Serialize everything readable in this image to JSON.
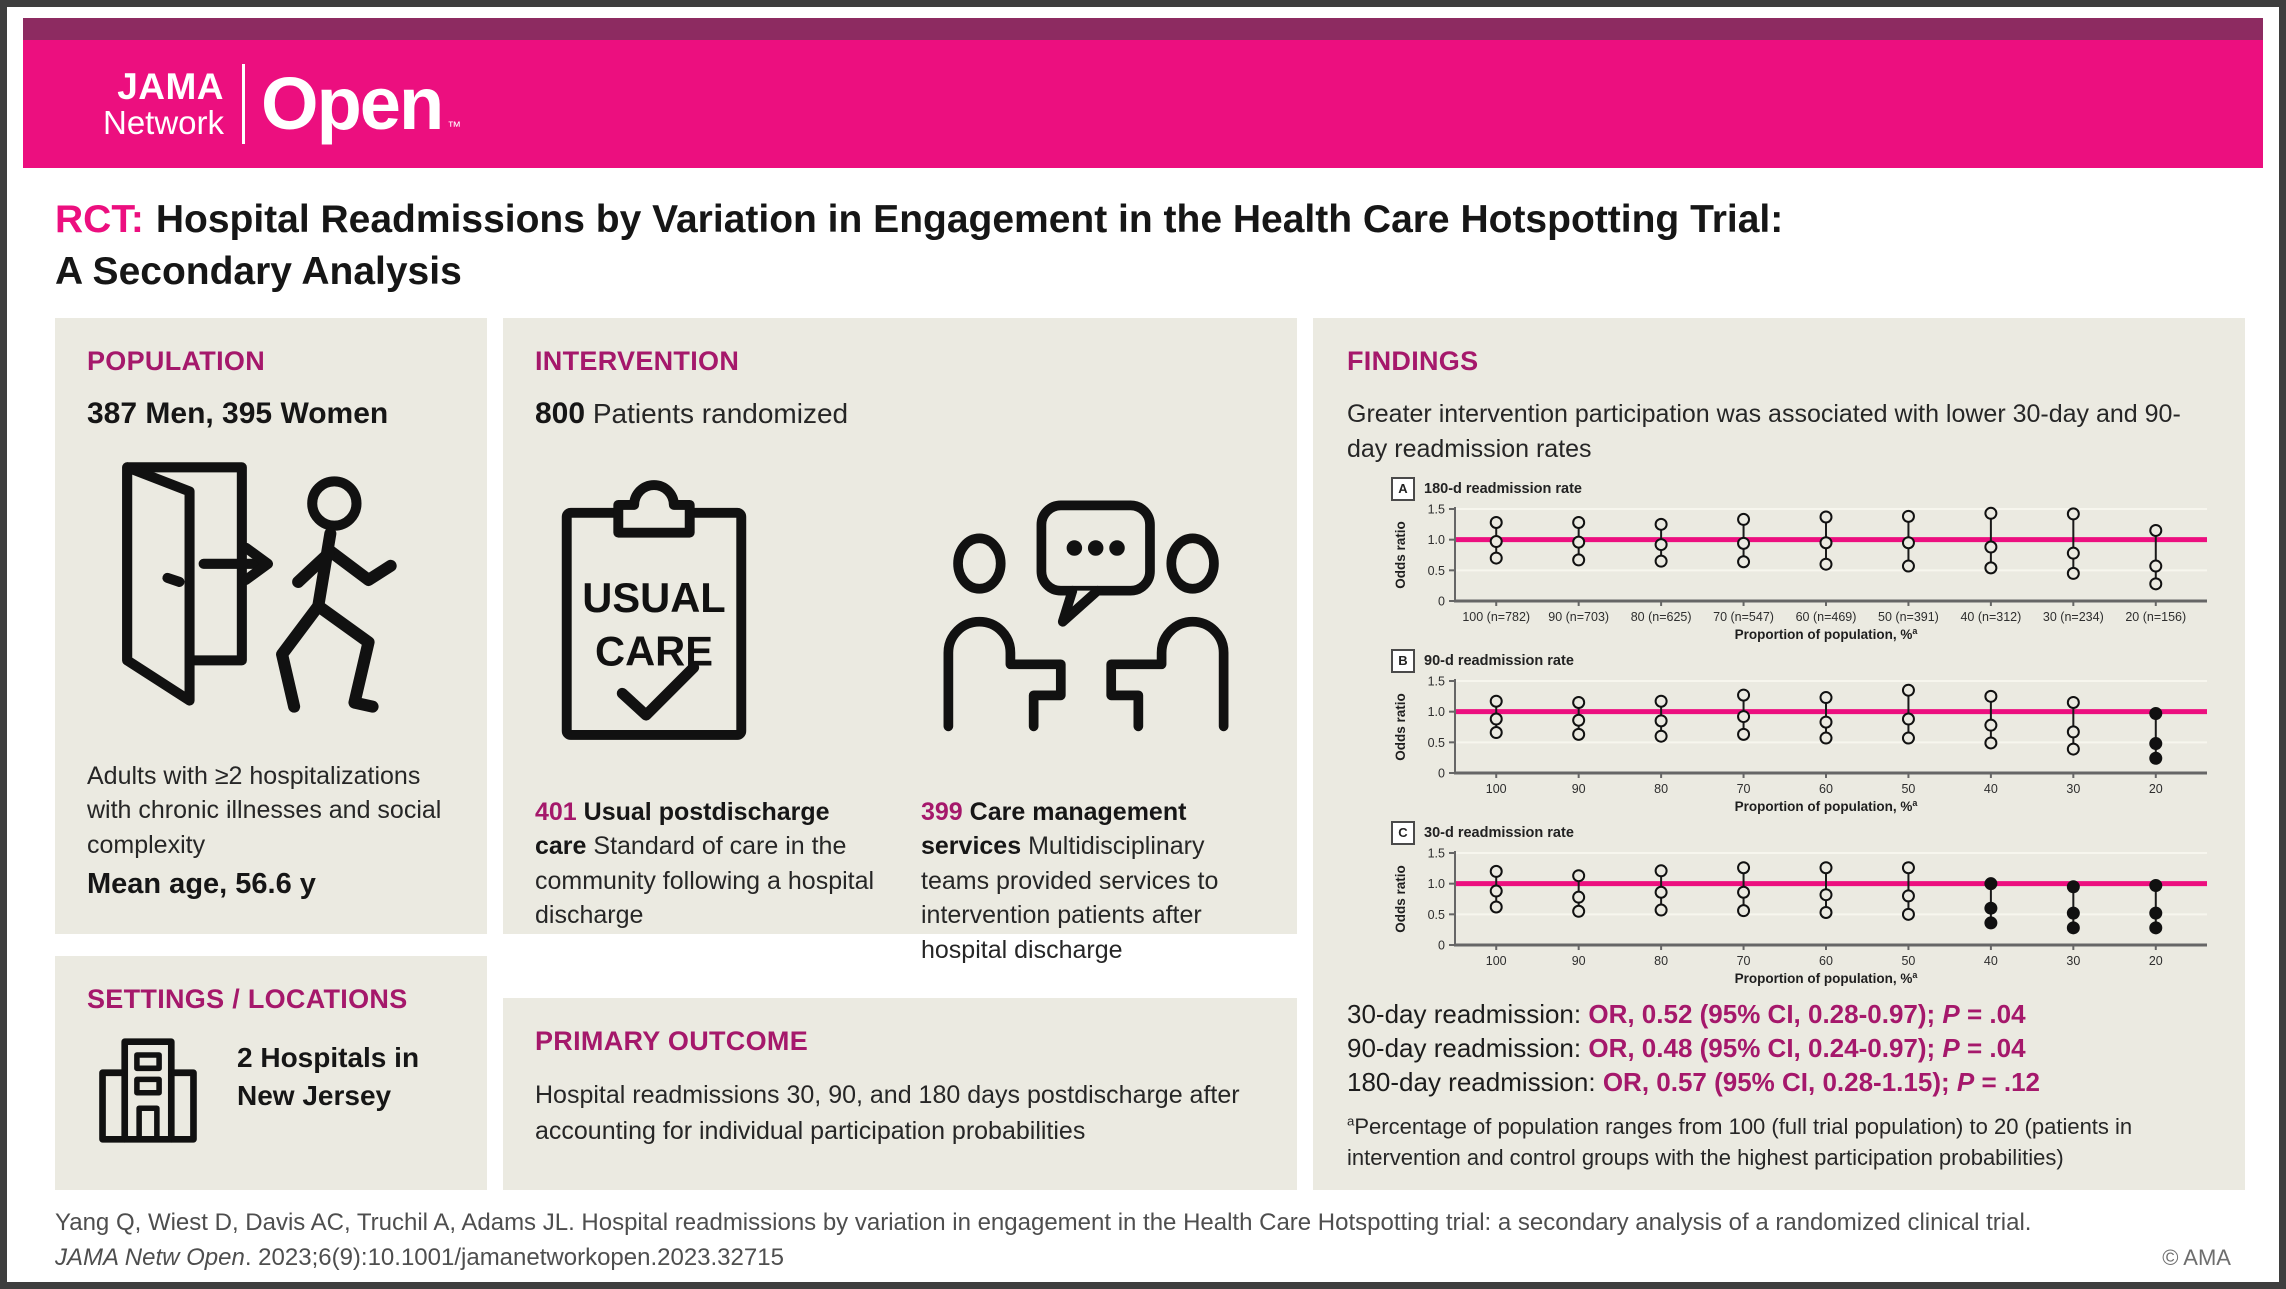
{
  "colors": {
    "brand_pink": "#EC0F7F",
    "brand_plum": "#8D2B61",
    "heading_magenta": "#A5186B",
    "panel_bg": "#EBEAE1"
  },
  "header": {
    "brand_line1": "JAMA",
    "brand_line2": "Network",
    "brand_open": "Open",
    "trademark": "™"
  },
  "title": {
    "prefix": "RCT:",
    "line1": "Hospital Readmissions by Variation in Engagement in the Health Care Hotspotting Trial:",
    "line2": "A Secondary Analysis"
  },
  "population": {
    "heading": "POPULATION",
    "stat": "387 Men, 395 Women",
    "description": "Adults with ≥2 hospitalizations with chronic illnesses and social complexity",
    "mean_age": "Mean age, 56.6 y"
  },
  "settings": {
    "heading": "SETTINGS / LOCATIONS",
    "line1": "2 Hospitals in",
    "line2": "New Jersey"
  },
  "intervention": {
    "heading": "INTERVENTION",
    "randomized_number": "800",
    "randomized_text": "Patients randomized",
    "clipboard_line1": "USUAL",
    "clipboard_line2": "CARE",
    "arm1": {
      "number": "401",
      "bold": "Usual postdischarge care",
      "text": "Standard of care in the community following a hospital discharge"
    },
    "arm2": {
      "number": "399",
      "bold": "Care management services",
      "text": "Multidisciplinary teams provided services to intervention patients after hospital discharge"
    }
  },
  "primary_outcome": {
    "heading": "PRIMARY OUTCOME",
    "text": "Hospital readmissions 30, 90, and 180 days postdischarge after accounting for individual participation probabilities"
  },
  "findings": {
    "heading": "FINDINGS",
    "summary": "Greater intervention participation was associated with lower 30-day and 90-day readmission rates",
    "results": [
      {
        "label": "30-day readmission:",
        "or": "OR, 0.52 (95% CI, 0.28-0.97);",
        "p_label": "P",
        "p_value": " = .04"
      },
      {
        "label": "90-day readmission:",
        "or": "OR, 0.48 (95% CI, 0.24-0.97);",
        "p_label": "P",
        "p_value": " = .04"
      },
      {
        "label": "180-day readmission:",
        "or": "OR, 0.57 (95% CI, 0.28-1.15);",
        "p_label": "P",
        "p_value": " = .12"
      }
    ],
    "footnote_marker": "a",
    "footnote": "Percentage of population ranges from 100 (full trial population) to 20 (patients in intervention and control groups with the highest participation probabilities)"
  },
  "chart_data": [
    {
      "type": "scatter",
      "panel": "A",
      "title": "180-d readmission rate",
      "xlabel": "Proportion of population, %",
      "xlabel_sup": "a",
      "ylabel": "Odds ratio",
      "ylim": [
        0,
        1.5
      ],
      "yticks": [
        0,
        0.5,
        1.0,
        1.5
      ],
      "reference_line": 1.0,
      "grid": true,
      "categories": [
        "100 (n=782)",
        "90 (n=703)",
        "80 (n=625)",
        "70 (n=547)",
        "60 (n=469)",
        "50 (n=391)",
        "40 (n=312)",
        "30 (n=234)",
        "20 (n=156)"
      ],
      "series": [
        {
          "name": "odds ratio",
          "values": [
            0.97,
            0.96,
            0.92,
            0.94,
            0.95,
            0.95,
            0.88,
            0.78,
            0.57
          ]
        },
        {
          "name": "upper 95% CI",
          "values": [
            1.28,
            1.28,
            1.25,
            1.33,
            1.37,
            1.38,
            1.43,
            1.42,
            1.15
          ]
        },
        {
          "name": "lower 95% CI",
          "values": [
            0.7,
            0.67,
            0.65,
            0.64,
            0.6,
            0.57,
            0.54,
            0.45,
            0.28
          ]
        }
      ],
      "filled_points": [
        false,
        false,
        false,
        false,
        false,
        false,
        false,
        false,
        false
      ]
    },
    {
      "type": "scatter",
      "panel": "B",
      "title": "90-d readmission rate",
      "xlabel": "Proportion of population, %",
      "xlabel_sup": "a",
      "ylabel": "Odds ratio",
      "ylim": [
        0,
        1.5
      ],
      "yticks": [
        0,
        0.5,
        1.0,
        1.5
      ],
      "reference_line": 1.0,
      "grid": true,
      "categories": [
        "100",
        "90",
        "80",
        "70",
        "60",
        "50",
        "40",
        "30",
        "20"
      ],
      "series": [
        {
          "name": "odds ratio",
          "values": [
            0.88,
            0.86,
            0.85,
            0.92,
            0.83,
            0.88,
            0.78,
            0.67,
            0.48
          ]
        },
        {
          "name": "upper 95% CI",
          "values": [
            1.17,
            1.15,
            1.17,
            1.27,
            1.23,
            1.35,
            1.25,
            1.15,
            0.97
          ]
        },
        {
          "name": "lower 95% CI",
          "values": [
            0.66,
            0.63,
            0.6,
            0.63,
            0.57,
            0.57,
            0.49,
            0.39,
            0.24
          ]
        }
      ],
      "filled_points": [
        false,
        false,
        false,
        false,
        false,
        false,
        false,
        false,
        true
      ]
    },
    {
      "type": "scatter",
      "panel": "C",
      "title": "30-d readmission rate",
      "xlabel": "Proportion of population, %",
      "xlabel_sup": "a",
      "ylabel": "Odds ratio",
      "ylim": [
        0,
        1.5
      ],
      "yticks": [
        0,
        0.5,
        1.0,
        1.5
      ],
      "reference_line": 1.0,
      "grid": true,
      "categories": [
        "100",
        "90",
        "80",
        "70",
        "60",
        "50",
        "40",
        "30",
        "20"
      ],
      "series": [
        {
          "name": "odds ratio",
          "values": [
            0.88,
            0.78,
            0.86,
            0.86,
            0.82,
            0.8,
            0.6,
            0.52,
            0.52
          ]
        },
        {
          "name": "upper 95% CI",
          "values": [
            1.2,
            1.13,
            1.21,
            1.26,
            1.26,
            1.26,
            1.0,
            0.95,
            0.97
          ]
        },
        {
          "name": "lower 95% CI",
          "values": [
            0.62,
            0.55,
            0.57,
            0.56,
            0.53,
            0.5,
            0.36,
            0.28,
            0.28
          ]
        }
      ],
      "filled_points": [
        false,
        false,
        false,
        false,
        false,
        false,
        true,
        true,
        true
      ]
    }
  ],
  "footer": {
    "citation_line1": "Yang Q, Wiest D, Davis AC, Truchil A, Adams JL. Hospital readmissions by variation in engagement in the Health Care Hotspotting trial: a secondary analysis of a randomized clinical trial.",
    "citation_journal": "JAMA Netw Open",
    "citation_rest": ". 2023;6(9):10.1001/jamanetworkopen.2023.32715",
    "copyright": "© AMA"
  }
}
